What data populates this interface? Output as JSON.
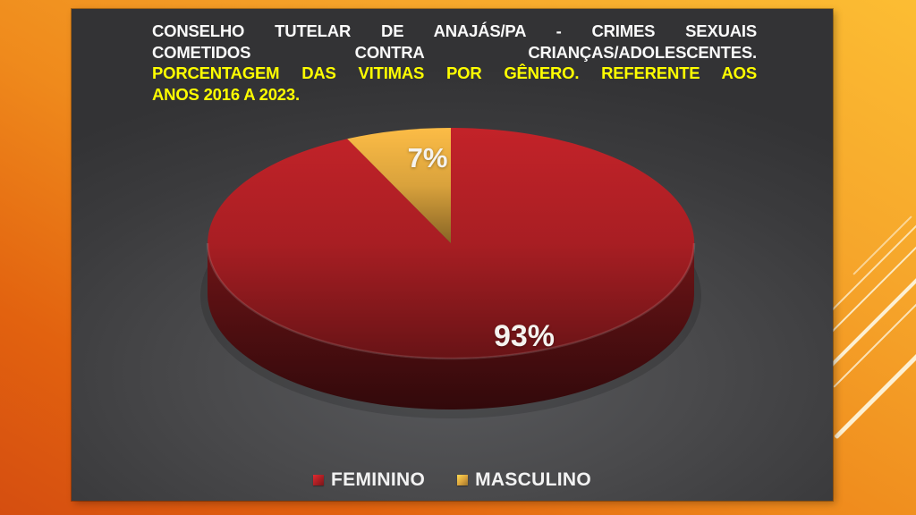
{
  "slide": {
    "title_lines": [
      "CONSELHO TUTELAR DE ANAJÁS/PA - CRIMES SEXUAIS",
      "COMETIDOS CONTRA CRIANÇAS/ADOLESCENTES.",
      "PORCENTAGEM DAS VITIMAS POR GÊNERO. REFERENTE AOS",
      "ANOS 2016 A 2023."
    ]
  },
  "chart_data": {
    "type": "pie",
    "three_d": true,
    "title": "CONSELHO TUTELAR DE ANAJÁS/PA - CRIMES SEXUAIS COMETIDOS CONTRA CRIANÇAS/ADOLESCENTES. PORCENTAGEM DAS VITIMAS POR GÊNERO. REFERENTE AOS ANOS 2016 A 2023.",
    "start_angle_deg": 0,
    "direction": "clockwise",
    "legend_position": "bottom",
    "data_labels": "percent",
    "series": [
      {
        "name": "FEMININO",
        "value": 93,
        "label": "93%",
        "color": "#a81e23"
      },
      {
        "name": "MASCULINO",
        "value": 7,
        "label": "7%",
        "color": "#d9a23c"
      }
    ]
  },
  "palette": {
    "title_white": "#fafafa",
    "title_yellow": "#ffff00",
    "slide_background": "#454547",
    "frame_orange_light": "#fcbd33",
    "frame_orange_dark": "#d54e10",
    "decoration_line": "#fdf4dc"
  }
}
